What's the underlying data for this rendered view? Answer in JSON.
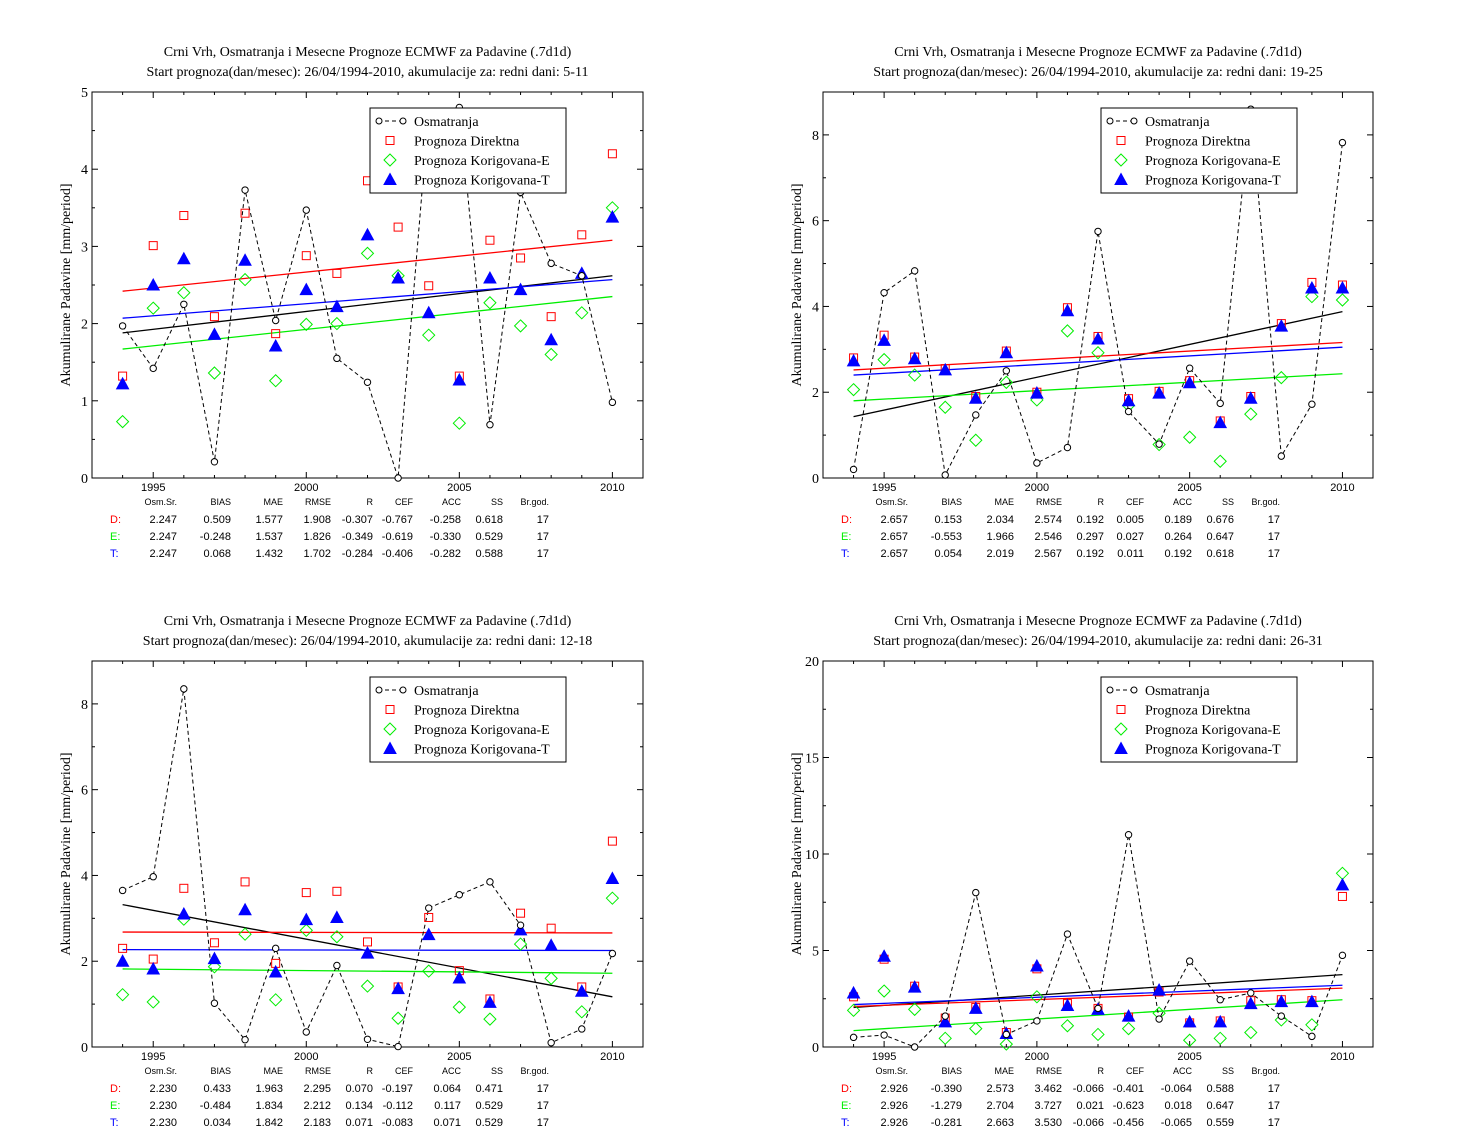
{
  "colors": {
    "obs": "#000000",
    "direct": "#ff0000",
    "corrE": "#00ee00",
    "corrT": "#0000ff"
  },
  "legend": [
    "Osmatranja",
    "Prognoza Direktna",
    "Prognoza Korigovana-E",
    "Prognoza Korigovana-T"
  ],
  "stats_header": [
    "Osm.Sr.",
    "BIAS",
    "MAE",
    "RMSE",
    "R",
    "CEF",
    "ACC",
    "SS",
    "Br.god."
  ],
  "chart_data": [
    {
      "type": "scatter",
      "title": "Crni Vrh, Osmatranja i Mesecne Prognoze ECMWF za Padavine (.7d1d)",
      "subtitle": "Start prognoza(dan/mesec): 26/04/1994-2010, akumulacije za: redni dani: 5-11",
      "ylabel": "Akumulirane Padavine [mm/period]",
      "xlim": [
        1993,
        2011
      ],
      "ylim": [
        0,
        5
      ],
      "xticks": [
        1995,
        2000,
        2005,
        2010
      ],
      "yticks": [
        0,
        1,
        2,
        3,
        4,
        5
      ],
      "years": [
        1994,
        1995,
        1996,
        1997,
        1998,
        1999,
        2000,
        2001,
        2002,
        2003,
        2004,
        2005,
        2006,
        2007,
        2008,
        2009,
        2010
      ],
      "series": [
        {
          "name": "Osmatranja",
          "values": [
            1.97,
            1.42,
            2.25,
            0.21,
            3.73,
            2.04,
            3.47,
            1.55,
            1.24,
            0.0,
            4.75,
            4.8,
            0.69,
            3.7,
            2.78,
            2.62,
            0.98
          ]
        },
        {
          "name": "Prognoza Direktna",
          "values": [
            1.32,
            3.01,
            3.4,
            2.09,
            3.43,
            1.87,
            2.88,
            2.65,
            3.85,
            3.25,
            2.49,
            1.32,
            3.08,
            2.85,
            2.09,
            3.15,
            4.2
          ]
        },
        {
          "name": "Prognoza Korigovana-E",
          "values": [
            0.73,
            2.2,
            2.4,
            1.36,
            2.57,
            1.26,
            1.99,
            2.0,
            2.91,
            2.62,
            1.85,
            0.71,
            2.27,
            1.97,
            1.6,
            2.14,
            3.5
          ]
        },
        {
          "name": "Prognoza Korigovana-T",
          "values": [
            1.22,
            2.5,
            2.84,
            1.86,
            2.82,
            1.71,
            2.44,
            2.22,
            3.15,
            2.59,
            2.14,
            1.27,
            2.59,
            2.44,
            1.79,
            2.65,
            3.38
          ]
        }
      ],
      "trends": [
        [
          1.88,
          2.62
        ],
        [
          2.42,
          3.08
        ],
        [
          1.67,
          2.35
        ],
        [
          2.07,
          2.57
        ]
      ],
      "stats": [
        {
          "label": "D:",
          "values": [
            "2.247",
            "0.509",
            "1.577",
            "1.908",
            "-0.307",
            "-0.767",
            "-0.258",
            "0.618",
            "17"
          ]
        },
        {
          "label": "E:",
          "values": [
            "2.247",
            "-0.248",
            "1.537",
            "1.826",
            "-0.349",
            "-0.619",
            "-0.330",
            "0.529",
            "17"
          ]
        },
        {
          "label": "T:",
          "values": [
            "2.247",
            "0.068",
            "1.432",
            "1.702",
            "-0.284",
            "-0.406",
            "-0.282",
            "0.588",
            "17"
          ]
        }
      ]
    },
    {
      "type": "scatter",
      "title": "Crni Vrh, Osmatranja i Mesecne Prognoze ECMWF za Padavine (.7d1d)",
      "subtitle": "Start prognoza(dan/mesec): 26/04/1994-2010, akumulacije za: redni dani: 19-25",
      "ylabel": "Akumulirane Padavine [mm/period]",
      "xlim": [
        1993,
        2011
      ],
      "ylim": [
        0,
        9
      ],
      "xticks": [
        1995,
        2000,
        2005,
        2010
      ],
      "yticks": [
        0,
        2,
        4,
        6,
        8
      ],
      "years": [
        1994,
        1995,
        1996,
        1997,
        1998,
        1999,
        2000,
        2001,
        2002,
        2003,
        2004,
        2005,
        2006,
        2007,
        2008,
        2009,
        2010
      ],
      "series": [
        {
          "name": "Osmatranja",
          "values": [
            0.2,
            4.32,
            4.83,
            0.07,
            1.47,
            2.5,
            0.35,
            0.71,
            5.75,
            1.55,
            0.79,
            2.56,
            1.74,
            8.6,
            0.51,
            1.72,
            7.82
          ]
        },
        {
          "name": "Prognoza Direktna",
          "values": [
            2.8,
            3.33,
            2.82,
            2.55,
            1.9,
            2.96,
            2.0,
            3.97,
            3.3,
            1.85,
            2.02,
            2.27,
            1.33,
            1.9,
            3.6,
            4.56,
            4.5
          ]
        },
        {
          "name": "Prognoza Korigovana-E",
          "values": [
            2.06,
            2.76,
            2.4,
            1.65,
            0.88,
            2.23,
            1.82,
            3.43,
            2.92,
            1.69,
            0.78,
            0.95,
            0.39,
            1.49,
            2.34,
            4.23,
            4.15
          ]
        },
        {
          "name": "Prognoza Korigovana-T",
          "values": [
            2.73,
            3.21,
            2.78,
            2.52,
            1.86,
            2.92,
            1.98,
            3.9,
            3.24,
            1.8,
            1.98,
            2.22,
            1.29,
            1.86,
            3.54,
            4.43,
            4.43
          ]
        }
      ],
      "trends": [
        [
          1.43,
          3.88
        ],
        [
          2.52,
          3.16
        ],
        [
          1.8,
          2.43
        ],
        [
          2.4,
          3.05
        ]
      ],
      "stats": [
        {
          "label": "D:",
          "values": [
            "2.657",
            "0.153",
            "2.034",
            "2.574",
            "0.192",
            "0.005",
            "0.189",
            "0.676",
            "17"
          ]
        },
        {
          "label": "E:",
          "values": [
            "2.657",
            "-0.553",
            "1.966",
            "2.546",
            "0.297",
            "0.027",
            "0.264",
            "0.647",
            "17"
          ]
        },
        {
          "label": "T:",
          "values": [
            "2.657",
            "0.054",
            "2.019",
            "2.567",
            "0.192",
            "0.011",
            "0.192",
            "0.618",
            "17"
          ]
        }
      ]
    },
    {
      "type": "scatter",
      "title": "Crni Vrh, Osmatranja i Mesecne Prognoze ECMWF za Padavine (.7d1d)",
      "subtitle": "Start prognoza(dan/mesec): 26/04/1994-2010, akumulacije za: redni dani: 12-18",
      "ylabel": "Akumulirane Padavine [mm/period]",
      "xlim": [
        1993,
        2011
      ],
      "ylim": [
        0,
        9
      ],
      "xticks": [
        1995,
        2000,
        2005,
        2010
      ],
      "yticks": [
        0,
        2,
        4,
        6,
        8
      ],
      "years": [
        1994,
        1995,
        1996,
        1997,
        1998,
        1999,
        2000,
        2001,
        2002,
        2003,
        2004,
        2005,
        2006,
        2007,
        2008,
        2009,
        2010
      ],
      "series": [
        {
          "name": "Osmatranja",
          "values": [
            3.65,
            3.97,
            8.35,
            1.02,
            0.17,
            2.3,
            0.35,
            1.9,
            0.18,
            0.01,
            3.24,
            3.55,
            3.85,
            2.84,
            0.1,
            0.42,
            2.18
          ]
        },
        {
          "name": "Prognoza Direktna",
          "values": [
            2.3,
            2.05,
            3.7,
            2.43,
            3.85,
            1.95,
            3.6,
            3.63,
            2.45,
            1.4,
            3.02,
            1.78,
            1.12,
            3.12,
            2.77,
            1.4,
            4.8
          ]
        },
        {
          "name": "Prognoza Korigovana-E",
          "values": [
            1.22,
            1.05,
            2.98,
            1.87,
            2.63,
            1.1,
            2.72,
            2.57,
            1.42,
            0.67,
            1.77,
            0.93,
            0.65,
            2.4,
            1.6,
            0.82,
            3.47
          ]
        },
        {
          "name": "Prognoza Korigovana-T",
          "values": [
            2.0,
            1.82,
            3.1,
            2.06,
            3.2,
            1.75,
            2.97,
            3.02,
            2.19,
            1.36,
            2.62,
            1.61,
            1.04,
            2.73,
            2.37,
            1.3,
            3.93
          ]
        }
      ],
      "trends": [
        [
          3.32,
          1.17
        ],
        [
          2.68,
          2.66
        ],
        [
          1.82,
          1.72
        ],
        [
          2.27,
          2.25
        ]
      ],
      "stats": [
        {
          "label": "D:",
          "values": [
            "2.230",
            "0.433",
            "1.963",
            "2.295",
            "0.070",
            "-0.197",
            "0.064",
            "0.471",
            "17"
          ]
        },
        {
          "label": "E:",
          "values": [
            "2.230",
            "-0.484",
            "1.834",
            "2.212",
            "0.134",
            "-0.112",
            "0.117",
            "0.529",
            "17"
          ]
        },
        {
          "label": "T:",
          "values": [
            "2.230",
            "0.034",
            "1.842",
            "2.183",
            "0.071",
            "-0.083",
            "0.071",
            "0.529",
            "17"
          ]
        }
      ]
    },
    {
      "type": "scatter",
      "title": "Crni Vrh, Osmatranja i Mesecne Prognoze ECMWF za Padavine (.7d1d)",
      "subtitle": "Start prognoza(dan/mesec): 26/04/1994-2010, akumulacije za: redni dani: 26-31",
      "ylabel": "Akumulirane Padavine [mm/period]",
      "xlim": [
        1993,
        2011
      ],
      "ylim": [
        0,
        20
      ],
      "xticks": [
        1995,
        2000,
        2005,
        2010
      ],
      "yticks": [
        0,
        5,
        10,
        15,
        20
      ],
      "years": [
        1994,
        1995,
        1996,
        1997,
        1998,
        1999,
        2000,
        2001,
        2002,
        2003,
        2004,
        2005,
        2006,
        2007,
        2008,
        2009,
        2010
      ],
      "series": [
        {
          "name": "Osmatranja",
          "values": [
            0.5,
            0.62,
            0.0,
            1.6,
            8.0,
            0.65,
            1.35,
            5.85,
            2.0,
            11.0,
            1.45,
            4.45,
            2.45,
            2.8,
            1.6,
            0.55,
            4.75
          ]
        },
        {
          "name": "Prognoza Direktna",
          "values": [
            2.6,
            4.55,
            3.15,
            1.5,
            2.05,
            0.75,
            4.05,
            2.25,
            2.0,
            1.55,
            2.85,
            1.25,
            1.35,
            2.4,
            2.45,
            2.4,
            7.8
          ]
        },
        {
          "name": "Prognoza Korigovana-E",
          "values": [
            1.9,
            2.9,
            1.95,
            0.45,
            0.95,
            0.15,
            2.6,
            1.1,
            0.65,
            0.95,
            1.75,
            0.35,
            0.45,
            0.75,
            1.4,
            1.15,
            9.0
          ]
        },
        {
          "name": "Prognoza Korigovana-T",
          "values": [
            2.8,
            4.7,
            3.1,
            1.3,
            2.0,
            0.7,
            4.2,
            2.15,
            1.95,
            1.6,
            2.95,
            1.3,
            1.3,
            2.25,
            2.35,
            2.35,
            8.4
          ]
        }
      ],
      "trends": [
        [
          2.05,
          3.75
        ],
        [
          2.1,
          3.05
        ],
        [
          0.85,
          2.45
        ],
        [
          2.2,
          3.2
        ]
      ],
      "stats": [
        {
          "label": "D:",
          "values": [
            "2.926",
            "-0.390",
            "2.573",
            "3.462",
            "-0.066",
            "-0.401",
            "-0.064",
            "0.588",
            "17"
          ]
        },
        {
          "label": "E:",
          "values": [
            "2.926",
            "-1.279",
            "2.704",
            "3.727",
            "0.021",
            "-0.623",
            "0.018",
            "0.647",
            "17"
          ]
        },
        {
          "label": "T:",
          "values": [
            "2.926",
            "-0.281",
            "2.663",
            "3.530",
            "-0.066",
            "-0.456",
            "-0.065",
            "0.559",
            "17"
          ]
        }
      ]
    }
  ]
}
